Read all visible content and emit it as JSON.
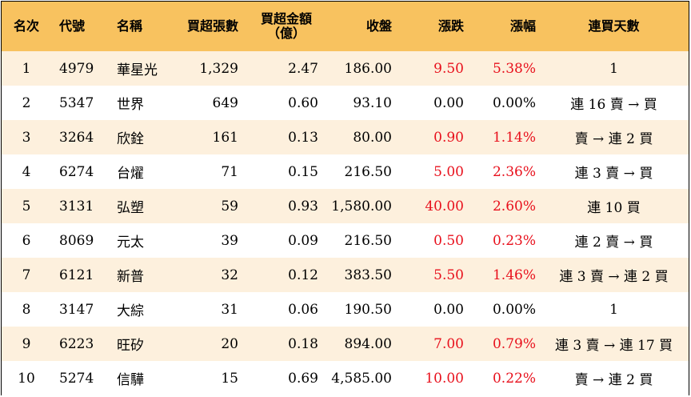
{
  "colors": {
    "header_bg": "#f8c25f",
    "odd_row_bg": "#fdf0dd",
    "up": "#e8101c"
  },
  "headers": {
    "rank": "名次",
    "code": "代號",
    "name": "名稱",
    "volume": "買超張數",
    "amount_line1": "買超金額",
    "amount_line2": "（億）",
    "close": "收盤",
    "change": "漲跌",
    "pct": "漲幅",
    "days": "連買天數"
  },
  "rows": [
    {
      "rank": "1",
      "code": "4979",
      "name": "華星光",
      "volume": "1,329",
      "amount": "2.47",
      "close": "186.00",
      "change": "9.50",
      "pct": "5.38%",
      "days": "1",
      "up": true
    },
    {
      "rank": "2",
      "code": "5347",
      "name": "世界",
      "volume": "649",
      "amount": "0.60",
      "close": "93.10",
      "change": "0.00",
      "pct": "0.00%",
      "days": "連 16 賣 → 買",
      "up": false
    },
    {
      "rank": "3",
      "code": "3264",
      "name": "欣銓",
      "volume": "161",
      "amount": "0.13",
      "close": "80.00",
      "change": "0.90",
      "pct": "1.14%",
      "days": "賣 → 連 2 買",
      "up": true
    },
    {
      "rank": "4",
      "code": "6274",
      "name": "台燿",
      "volume": "71",
      "amount": "0.15",
      "close": "216.50",
      "change": "5.00",
      "pct": "2.36%",
      "days": "連 3 賣 → 買",
      "up": true
    },
    {
      "rank": "5",
      "code": "3131",
      "name": "弘塑",
      "volume": "59",
      "amount": "0.93",
      "close": "1,580.00",
      "change": "40.00",
      "pct": "2.60%",
      "days": "連 10 買",
      "up": true
    },
    {
      "rank": "6",
      "code": "8069",
      "name": "元太",
      "volume": "39",
      "amount": "0.09",
      "close": "216.50",
      "change": "0.50",
      "pct": "0.23%",
      "days": "連 2 賣 → 買",
      "up": true
    },
    {
      "rank": "7",
      "code": "6121",
      "name": "新普",
      "volume": "32",
      "amount": "0.12",
      "close": "383.50",
      "change": "5.50",
      "pct": "1.46%",
      "days": "連 3 賣 → 連 2 買",
      "up": true
    },
    {
      "rank": "8",
      "code": "3147",
      "name": "大綜",
      "volume": "31",
      "amount": "0.06",
      "close": "190.50",
      "change": "0.00",
      "pct": "0.00%",
      "days": "1",
      "up": false
    },
    {
      "rank": "9",
      "code": "6223",
      "name": "旺矽",
      "volume": "20",
      "amount": "0.18",
      "close": "894.00",
      "change": "7.00",
      "pct": "0.79%",
      "days": "連 3 賣 → 連 17 買",
      "up": true
    },
    {
      "rank": "10",
      "code": "5274",
      "name": "信驊",
      "volume": "15",
      "amount": "0.69",
      "close": "4,585.00",
      "change": "10.00",
      "pct": "0.22%",
      "days": "賣 → 連 2 買",
      "up": true
    }
  ]
}
